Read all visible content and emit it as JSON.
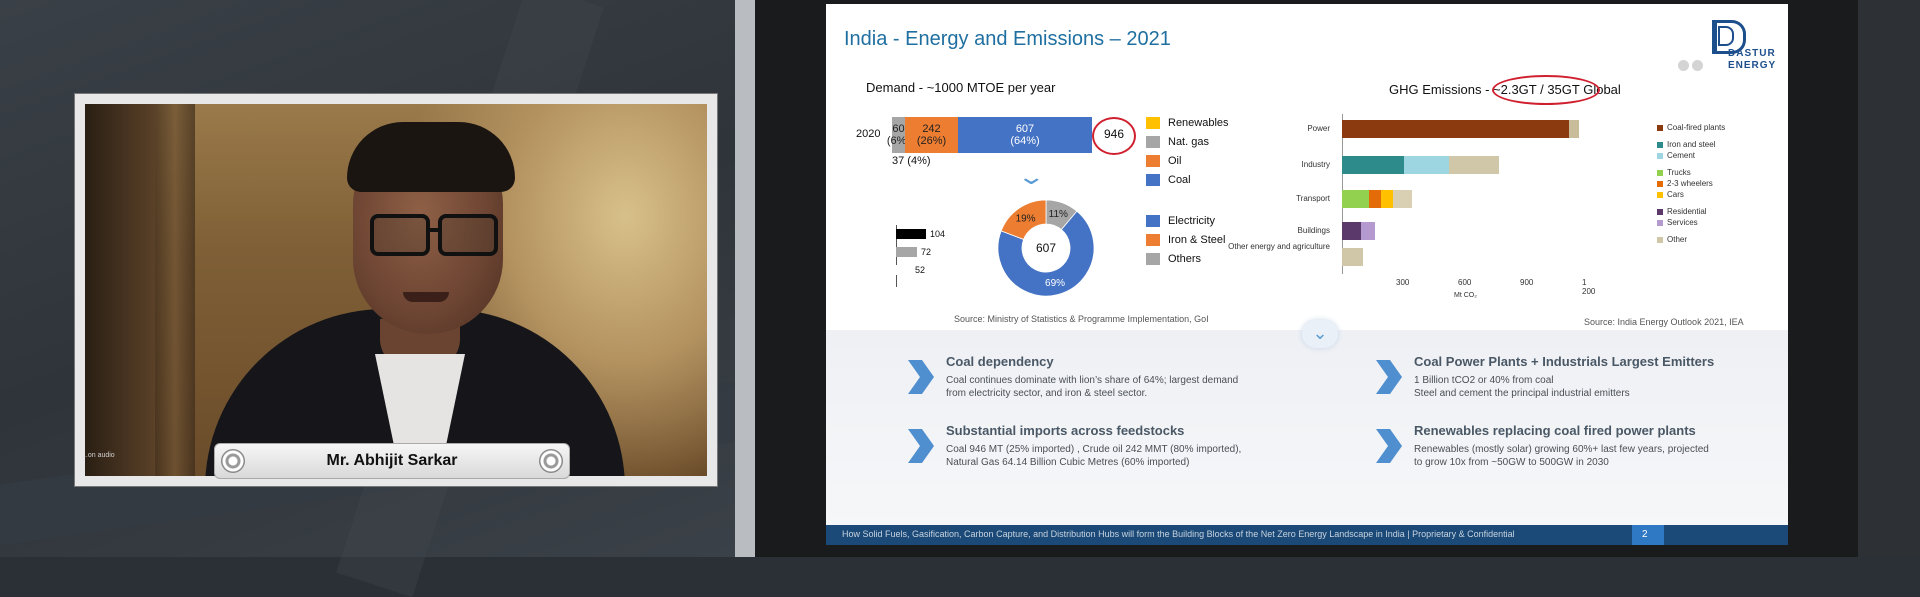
{
  "speaker": {
    "name": "Mr. Abhijit Sarkar",
    "corner_text": "...on audio"
  },
  "slide": {
    "title": "India - Energy and Emissions – 2021",
    "logo": {
      "line1": "DASTUR",
      "line2": "ENERGY"
    },
    "demand": {
      "title": "Demand - ~1000 MTOE per year",
      "year": "2020",
      "segments": [
        {
          "label": "60\n(6%)",
          "value": 60,
          "color": "#a6a6a6"
        },
        {
          "label": "242\n(26%)",
          "value": 242,
          "color": "#ed7d31"
        },
        {
          "label": "607\n(64%)",
          "value": 607,
          "color": "#4472c4"
        }
      ],
      "total": "946",
      "renewables_note": "37 (4%)",
      "legend": [
        {
          "label": "Renewables",
          "color": "#ffc000"
        },
        {
          "label": "Nat. gas",
          "color": "#a6a6a6"
        },
        {
          "label": "Oil",
          "color": "#ed7d31"
        },
        {
          "label": "Coal",
          "color": "#4472c4"
        }
      ]
    },
    "coal_split": {
      "center": "607",
      "slices": [
        {
          "label": "69%",
          "value": 69,
          "color": "#4472c4"
        },
        {
          "label": "19%",
          "value": 19,
          "color": "#ed7d31"
        },
        {
          "label": "11%",
          "value": 11,
          "color": "#a6a6a6"
        }
      ],
      "mini_bars": [
        {
          "label": "104",
          "value": 104,
          "color": "#000000"
        },
        {
          "label": "72",
          "value": 72,
          "color": "#a6a6a6"
        },
        {
          "label": "52",
          "value": 52,
          "color": "#ffffff"
        }
      ],
      "legend": [
        {
          "label": "Electricity",
          "color": "#4472c4"
        },
        {
          "label": "Iron & Steel",
          "color": "#ed7d31"
        },
        {
          "label": "Others",
          "color": "#a6a6a6"
        }
      ]
    },
    "source_left": "Source: Ministry of Statistics & Programme Implementation, GoI",
    "ghg": {
      "title": "GHG Emissions - ~2.3GT / 35GT Global",
      "rows": [
        {
          "label": "Power",
          "segments": [
            {
              "value": 1100,
              "color": "#8b3a0f"
            },
            {
              "value": 50,
              "color": "#c9bc9a"
            }
          ]
        },
        {
          "label": "Industry",
          "segments": [
            {
              "value": 300,
              "color": "#2e8b8b"
            },
            {
              "value": 220,
              "color": "#9dd6e0"
            },
            {
              "value": 240,
              "color": "#cfc7a8"
            }
          ]
        },
        {
          "label": "Transport",
          "segments": [
            {
              "value": 130,
              "color": "#92d050"
            },
            {
              "value": 60,
              "color": "#e36c09"
            },
            {
              "value": 60,
              "color": "#ffc000"
            },
            {
              "value": 90,
              "color": "#d9d0b4"
            }
          ]
        },
        {
          "label": "Buildings",
          "segments": [
            {
              "value": 90,
              "color": "#5b3a6b"
            },
            {
              "value": 70,
              "color": "#b59ad0"
            }
          ]
        },
        {
          "label": "Other energy and agriculture",
          "segments": [
            {
              "value": 100,
              "color": "#cfc7a8"
            }
          ]
        }
      ],
      "ticks": [
        "300",
        "600",
        "900",
        "1 200"
      ],
      "unit": "Mt CO₂",
      "legend": [
        {
          "label": "Coal-fired plants",
          "color": "#8b3a0f",
          "gap": false
        },
        {
          "label": "Iron and steel",
          "color": "#2e8b8b",
          "gap": true
        },
        {
          "label": "Cement",
          "color": "#9dd6e0",
          "gap": false
        },
        {
          "label": "Trucks",
          "color": "#92d050",
          "gap": true
        },
        {
          "label": "2-3 wheelers",
          "color": "#e36c09",
          "gap": false
        },
        {
          "label": "Cars",
          "color": "#ffc000",
          "gap": false
        },
        {
          "label": "Residential",
          "color": "#5b3a6b",
          "gap": true
        },
        {
          "label": "Services",
          "color": "#b59ad0",
          "gap": false
        },
        {
          "label": "Other",
          "color": "#cfc7a8",
          "gap": true
        }
      ]
    },
    "source_right": "Source: India Energy Outlook 2021, IEA",
    "points": [
      {
        "title": "Coal dependency",
        "text": "Coal continues dominate with lion’s share of 64%;  largest demand from electricity sector, and iron & steel sector."
      },
      {
        "title": "Coal Power Plants + Industrials Largest Emitters",
        "text": "1 Billion tCO2 or 40% from coal\nSteel and cement the principal industrial emitters"
      },
      {
        "title": "Substantial imports across feedstocks",
        "text": "Coal 946 MT  (25% imported) , Crude oil 242 MMT (80% imported), Natural Gas 64.14 Billion Cubic Metres (60% imported)"
      },
      {
        "title": "Renewables replacing coal fired power plants",
        "text": "Renewables (mostly solar)  growing 60%+ last few years, projected to grow 10x from ~50GW to 500GW in 2030"
      }
    ],
    "footer": "How Solid Fuels, Gasification, Carbon Capture, and Distribution Hubs will form the Building Blocks of the Net Zero Energy Landscape in India | Proprietary & Confidential",
    "page_number": "2"
  }
}
